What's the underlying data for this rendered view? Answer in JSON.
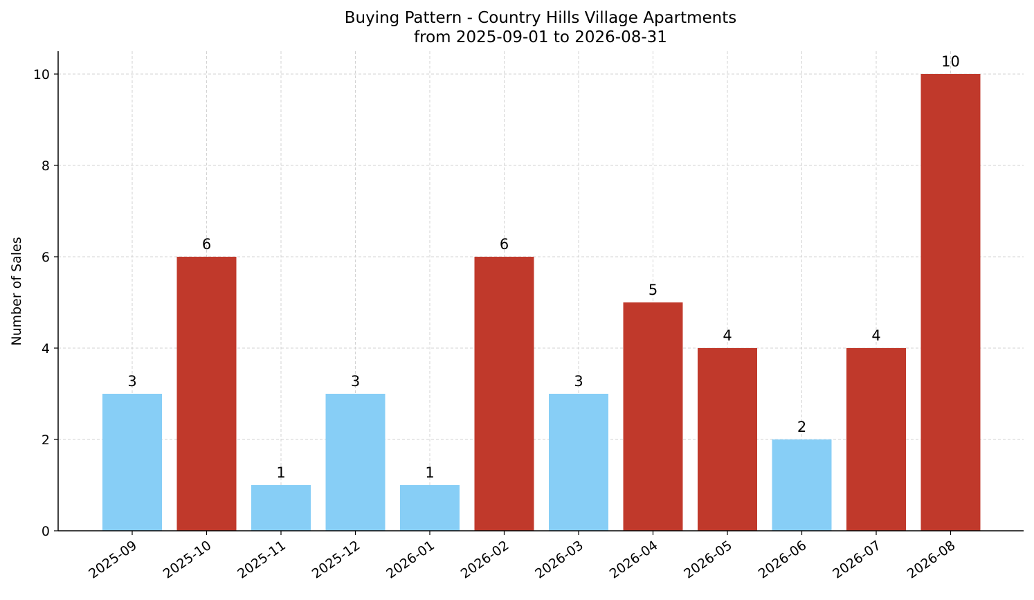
{
  "chart_data": {
    "type": "bar",
    "title": "Buying Pattern - Country Hills Village Apartments",
    "subtitle": "from 2025-09-01 to 2026-08-31",
    "xlabel": "",
    "ylabel": "Number of Sales",
    "categories": [
      "2025-09",
      "2025-10",
      "2025-11",
      "2025-12",
      "2026-01",
      "2026-02",
      "2026-03",
      "2026-04",
      "2026-05",
      "2026-06",
      "2026-07",
      "2026-08"
    ],
    "values": [
      3,
      6,
      1,
      3,
      1,
      6,
      3,
      5,
      4,
      2,
      4,
      10
    ],
    "bar_colors": [
      "#87CEF6",
      "#C0392B",
      "#87CEF6",
      "#87CEF6",
      "#87CEF6",
      "#C0392B",
      "#87CEF6",
      "#C0392B",
      "#C0392B",
      "#87CEF6",
      "#C0392B",
      "#C0392B"
    ],
    "y_ticks": [
      0,
      2,
      4,
      6,
      8,
      10
    ],
    "ylim": [
      0,
      10.5
    ],
    "grid": true,
    "data_labels": true
  }
}
